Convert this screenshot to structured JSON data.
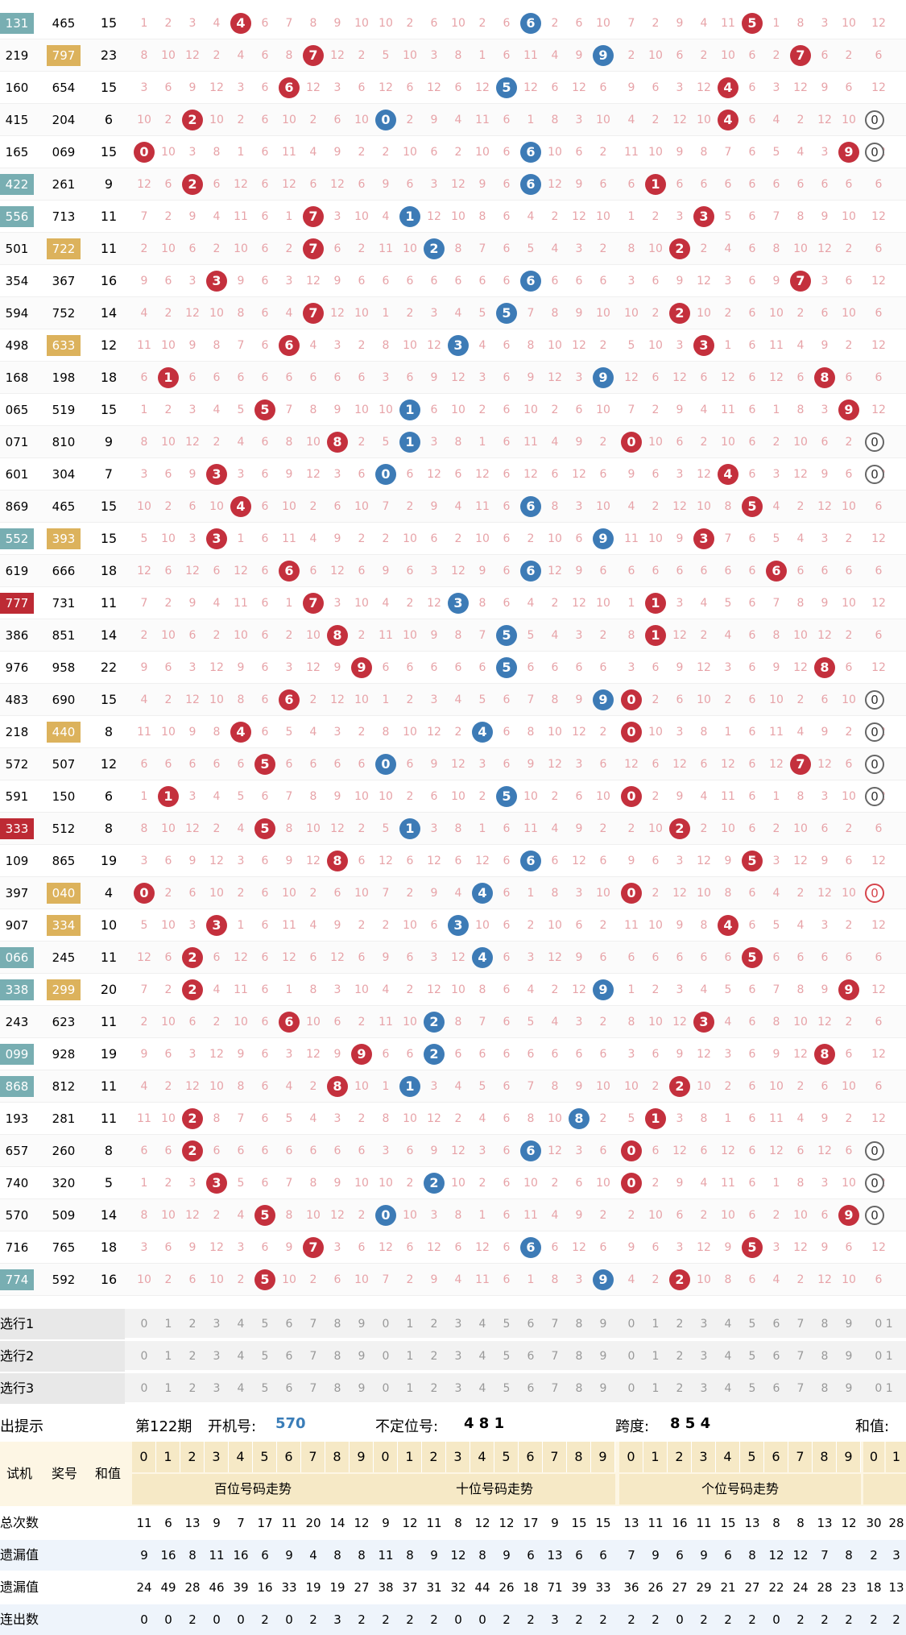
{
  "colors": {
    "red_ball": "#c4303d",
    "blue_ball": "#3d7bb6",
    "missing": "#e7a3a8",
    "tag_teal": "#78aeb2",
    "tag_gold": "#dcb25c",
    "tag_red": "#bd2a34",
    "header_bg": "#f6e9c6"
  },
  "rows": [
    {
      "issue": "131",
      "issue_tag": "teal",
      "prize": "465",
      "prize_tag": "",
      "sum": "15",
      "h": 4,
      "t": 6,
      "u": 5
    },
    {
      "issue": "219",
      "issue_tag": "",
      "prize": "797",
      "prize_tag": "gold",
      "sum": "23",
      "h": 7,
      "t": 9,
      "u": 7
    },
    {
      "issue": "160",
      "issue_tag": "",
      "prize": "654",
      "prize_tag": "",
      "sum": "15",
      "h": 6,
      "t": 5,
      "u": 4
    },
    {
      "issue": "415",
      "issue_tag": "",
      "prize": "204",
      "prize_tag": "",
      "sum": "6",
      "h": 2,
      "t": 0,
      "u": 4
    },
    {
      "issue": "165",
      "issue_tag": "",
      "prize": "069",
      "prize_tag": "",
      "sum": "15",
      "h": 0,
      "t": 6,
      "u": 9
    },
    {
      "issue": "422",
      "issue_tag": "teal",
      "prize": "261",
      "prize_tag": "",
      "sum": "9",
      "h": 2,
      "t": 6,
      "u": 1
    },
    {
      "issue": "556",
      "issue_tag": "teal",
      "prize": "713",
      "prize_tag": "",
      "sum": "11",
      "h": 7,
      "t": 1,
      "u": 3
    },
    {
      "issue": "501",
      "issue_tag": "",
      "prize": "722",
      "prize_tag": "gold",
      "sum": "11",
      "h": 7,
      "t": 2,
      "u": 2
    },
    {
      "issue": "354",
      "issue_tag": "",
      "prize": "367",
      "prize_tag": "",
      "sum": "16",
      "h": 3,
      "t": 6,
      "u": 7
    },
    {
      "issue": "594",
      "issue_tag": "",
      "prize": "752",
      "prize_tag": "",
      "sum": "14",
      "h": 7,
      "t": 5,
      "u": 2
    },
    {
      "issue": "498",
      "issue_tag": "",
      "prize": "633",
      "prize_tag": "gold",
      "sum": "12",
      "h": 6,
      "t": 3,
      "u": 3
    },
    {
      "issue": "168",
      "issue_tag": "",
      "prize": "198",
      "prize_tag": "",
      "sum": "18",
      "h": 1,
      "t": 9,
      "u": 8
    },
    {
      "issue": "065",
      "issue_tag": "",
      "prize": "519",
      "prize_tag": "",
      "sum": "15",
      "h": 5,
      "t": 1,
      "u": 9
    },
    {
      "issue": "071",
      "issue_tag": "",
      "prize": "810",
      "prize_tag": "",
      "sum": "9",
      "h": 8,
      "t": 1,
      "u": 0
    },
    {
      "issue": "601",
      "issue_tag": "",
      "prize": "304",
      "prize_tag": "",
      "sum": "7",
      "h": 3,
      "t": 0,
      "u": 4
    },
    {
      "issue": "869",
      "issue_tag": "",
      "prize": "465",
      "prize_tag": "",
      "sum": "15",
      "h": 4,
      "t": 6,
      "u": 5
    },
    {
      "issue": "552",
      "issue_tag": "teal",
      "prize": "393",
      "prize_tag": "gold",
      "sum": "15",
      "h": 3,
      "t": 9,
      "u": 3
    },
    {
      "issue": "619",
      "issue_tag": "",
      "prize": "666",
      "prize_tag": "",
      "sum": "18",
      "h": 6,
      "t": 6,
      "u": 6
    },
    {
      "issue": "777",
      "issue_tag": "red",
      "prize": "731",
      "prize_tag": "",
      "sum": "11",
      "h": 7,
      "t": 3,
      "u": 1
    },
    {
      "issue": "386",
      "issue_tag": "",
      "prize": "851",
      "prize_tag": "",
      "sum": "14",
      "h": 8,
      "t": 5,
      "u": 1
    },
    {
      "issue": "976",
      "issue_tag": "",
      "prize": "958",
      "prize_tag": "",
      "sum": "22",
      "h": 9,
      "t": 5,
      "u": 8
    },
    {
      "issue": "483",
      "issue_tag": "",
      "prize": "690",
      "prize_tag": "",
      "sum": "15",
      "h": 6,
      "t": 9,
      "u": 0
    },
    {
      "issue": "218",
      "issue_tag": "",
      "prize": "440",
      "prize_tag": "gold",
      "sum": "8",
      "h": 4,
      "t": 4,
      "u": 0
    },
    {
      "issue": "572",
      "issue_tag": "",
      "prize": "507",
      "prize_tag": "",
      "sum": "12",
      "h": 5,
      "t": 0,
      "u": 7
    },
    {
      "issue": "591",
      "issue_tag": "",
      "prize": "150",
      "prize_tag": "",
      "sum": "6",
      "h": 1,
      "t": 5,
      "u": 0
    },
    {
      "issue": "333",
      "issue_tag": "red",
      "prize": "512",
      "prize_tag": "",
      "sum": "8",
      "h": 5,
      "t": 1,
      "u": 2
    },
    {
      "issue": "109",
      "issue_tag": "",
      "prize": "865",
      "prize_tag": "",
      "sum": "19",
      "h": 8,
      "t": 6,
      "u": 5
    },
    {
      "issue": "397",
      "issue_tag": "",
      "prize": "040",
      "prize_tag": "gold",
      "sum": "4",
      "h": 0,
      "t": 4,
      "u": 0
    },
    {
      "issue": "907",
      "issue_tag": "",
      "prize": "334",
      "prize_tag": "gold",
      "sum": "10",
      "h": 3,
      "t": 3,
      "u": 4
    },
    {
      "issue": "066",
      "issue_tag": "teal",
      "prize": "245",
      "prize_tag": "",
      "sum": "11",
      "h": 2,
      "t": 4,
      "u": 5
    },
    {
      "issue": "338",
      "issue_tag": "teal",
      "prize": "299",
      "prize_tag": "gold",
      "sum": "20",
      "h": 2,
      "t": 9,
      "u": 9
    },
    {
      "issue": "243",
      "issue_tag": "",
      "prize": "623",
      "prize_tag": "",
      "sum": "11",
      "h": 6,
      "t": 2,
      "u": 3
    },
    {
      "issue": "099",
      "issue_tag": "teal",
      "prize": "928",
      "prize_tag": "",
      "sum": "19",
      "h": 9,
      "t": 2,
      "u": 8
    },
    {
      "issue": "868",
      "issue_tag": "teal",
      "prize": "812",
      "prize_tag": "",
      "sum": "11",
      "h": 8,
      "t": 1,
      "u": 2
    },
    {
      "issue": "193",
      "issue_tag": "",
      "prize": "281",
      "prize_tag": "",
      "sum": "11",
      "h": 2,
      "t": 8,
      "u": 1
    },
    {
      "issue": "657",
      "issue_tag": "",
      "prize": "260",
      "prize_tag": "",
      "sum": "8",
      "h": 2,
      "t": 6,
      "u": 0
    },
    {
      "issue": "740",
      "issue_tag": "",
      "prize": "320",
      "prize_tag": "",
      "sum": "5",
      "h": 3,
      "t": 2,
      "u": 0
    },
    {
      "issue": "570",
      "issue_tag": "",
      "prize": "509",
      "prize_tag": "",
      "sum": "14",
      "h": 5,
      "t": 0,
      "u": 9
    },
    {
      "issue": "716",
      "issue_tag": "",
      "prize": "765",
      "prize_tag": "",
      "sum": "18",
      "h": 7,
      "t": 6,
      "u": 5
    },
    {
      "issue": "774",
      "issue_tag": "teal",
      "prize": "592",
      "prize_tag": "",
      "sum": "16",
      "h": 5,
      "t": 9,
      "u": 2
    }
  ],
  "extra_rings": [
    {
      "row": 3,
      "label": "0"
    },
    {
      "row": 4,
      "label": "0"
    },
    {
      "row": 13,
      "label": "0"
    },
    {
      "row": 14,
      "label": "0"
    },
    {
      "row": 21,
      "label": "0"
    },
    {
      "row": 22,
      "label": "0"
    },
    {
      "row": 23,
      "label": "0"
    },
    {
      "row": 24,
      "label": "0"
    },
    {
      "row": 27,
      "label": "0",
      "red": true
    },
    {
      "row": 35,
      "label": "0"
    },
    {
      "row": 36,
      "label": "0"
    },
    {
      "row": 37,
      "label": "0"
    }
  ],
  "select_rows": [
    {
      "label": "选行1",
      "partial": "0 1"
    },
    {
      "label": "选行2",
      "partial": "0 1"
    },
    {
      "label": "选行3",
      "partial": "0 1"
    }
  ],
  "digits": [
    "0",
    "1",
    "2",
    "3",
    "4",
    "5",
    "6",
    "7",
    "8",
    "9"
  ],
  "info": {
    "title": "出提示",
    "period": "第122期",
    "draw_label": "开机号:",
    "draw_value": "570",
    "unfixed_label": "不定位号:",
    "unfixed_value": "4 8 1",
    "span_label": "跨度:",
    "span_value": "8 5 4",
    "sum_label": "和值:"
  },
  "header": {
    "col_test": "试机",
    "col_prize": "奖号",
    "col_sum": "和值",
    "hundreds": "百位号码走势",
    "tens": "十位号码走势",
    "units": "个位号码走势",
    "partial_digits": [
      "0",
      "1"
    ]
  },
  "stats": [
    {
      "label": "总次数",
      "hundreds": [
        "11",
        "6",
        "13",
        "9",
        "7",
        "17",
        "11",
        "20",
        "14",
        "12"
      ],
      "tens": [
        "9",
        "12",
        "11",
        "8",
        "12",
        "12",
        "17",
        "9",
        "15",
        "15"
      ],
      "units": [
        "13",
        "11",
        "16",
        "11",
        "15",
        "13",
        "8",
        "8",
        "13",
        "12"
      ],
      "extra": [
        "30",
        "28"
      ]
    },
    {
      "label": "遗漏值",
      "hundreds": [
        "9",
        "16",
        "8",
        "11",
        "16",
        "6",
        "9",
        "4",
        "8",
        "8"
      ],
      "tens": [
        "11",
        "8",
        "9",
        "12",
        "8",
        "9",
        "6",
        "13",
        "6",
        "6"
      ],
      "units": [
        "7",
        "9",
        "6",
        "9",
        "6",
        "8",
        "12",
        "12",
        "7",
        "8"
      ],
      "extra": [
        "2",
        "3"
      ]
    },
    {
      "label": "遗漏值",
      "hundreds": [
        "24",
        "49",
        "28",
        "46",
        "39",
        "16",
        "33",
        "19",
        "19",
        "27"
      ],
      "tens": [
        "38",
        "37",
        "31",
        "32",
        "44",
        "26",
        "18",
        "71",
        "39",
        "33"
      ],
      "units": [
        "36",
        "26",
        "27",
        "29",
        "21",
        "27",
        "22",
        "24",
        "28",
        "23"
      ],
      "extra": [
        "18",
        "13"
      ]
    },
    {
      "label": "连出数",
      "hundreds": [
        "0",
        "0",
        "2",
        "0",
        "0",
        "2",
        "0",
        "2",
        "3",
        "2"
      ],
      "tens": [
        "2",
        "2",
        "2",
        "0",
        "0",
        "2",
        "2",
        "3",
        "2",
        "2"
      ],
      "units": [
        "2",
        "2",
        "0",
        "2",
        "2",
        "2",
        "0",
        "2",
        "2",
        "2"
      ],
      "extra": [
        "2",
        "2"
      ]
    }
  ]
}
